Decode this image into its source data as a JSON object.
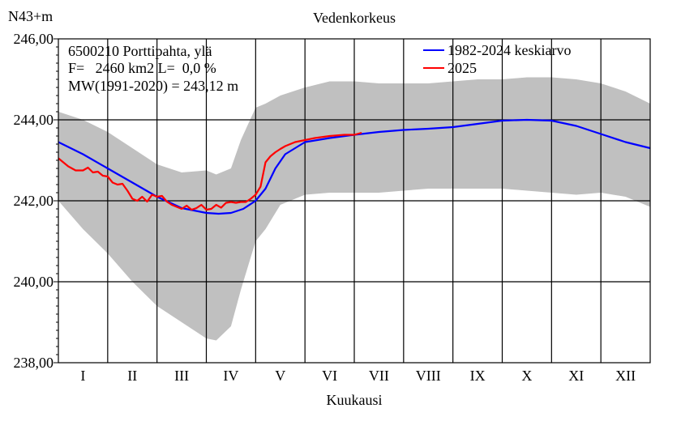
{
  "chart_data": {
    "type": "line",
    "title": "Vedenkorkeus",
    "ylabel": "N43+m",
    "xlabel": "Kuukausi",
    "ylim": [
      238,
      246
    ],
    "xlim": [
      0,
      12
    ],
    "yticks": [
      "238,00",
      "240,00",
      "242,00",
      "244,00",
      "246,00"
    ],
    "ytick_values": [
      238,
      240,
      242,
      244,
      246
    ],
    "months": [
      "I",
      "II",
      "III",
      "IV",
      "V",
      "VI",
      "VII",
      "VIII",
      "IX",
      "X",
      "XI",
      "XII"
    ],
    "info_lines": [
      "6500210 Porttipahta, ylä",
      "F=   2460 km2 L=  0,0 %",
      "MW(1991-2020) = 243,12 m"
    ],
    "grid": true,
    "legend_position": "top-right",
    "band": {
      "color": "#c0c0c0",
      "x": [
        0,
        0.5,
        1.0,
        1.5,
        2.0,
        2.5,
        3.0,
        3.2,
        3.5,
        3.7,
        4.0,
        4.2,
        4.5,
        5.0,
        5.5,
        6.0,
        6.5,
        7.0,
        7.5,
        8.0,
        8.5,
        9.0,
        9.5,
        10.0,
        10.5,
        11.0,
        11.5,
        12.0
      ],
      "upper": [
        244.2,
        244.0,
        243.7,
        243.3,
        242.9,
        242.7,
        242.75,
        242.65,
        242.8,
        243.5,
        244.3,
        244.4,
        244.6,
        244.8,
        244.95,
        244.95,
        244.9,
        244.9,
        244.9,
        244.95,
        245.0,
        245.0,
        245.05,
        245.05,
        245.0,
        244.9,
        244.7,
        244.4
      ],
      "lower": [
        242.0,
        241.3,
        240.7,
        240.0,
        239.4,
        239.0,
        238.6,
        238.55,
        238.9,
        239.8,
        241.0,
        241.3,
        241.9,
        242.15,
        242.2,
        242.2,
        242.2,
        242.25,
        242.3,
        242.3,
        242.3,
        242.3,
        242.25,
        242.2,
        242.15,
        242.2,
        242.1,
        241.85
      ]
    },
    "series": [
      {
        "name": "1982-2024 keskiarvo",
        "color": "#0000ff",
        "x": [
          0,
          0.5,
          1.0,
          1.5,
          2.0,
          2.5,
          3.0,
          3.25,
          3.5,
          3.75,
          4.0,
          4.2,
          4.4,
          4.6,
          4.8,
          5.0,
          5.5,
          6.0,
          6.5,
          7.0,
          7.5,
          8.0,
          8.5,
          9.0,
          9.5,
          10.0,
          10.5,
          11.0,
          11.5,
          12.0
        ],
        "y": [
          243.45,
          243.15,
          242.8,
          242.45,
          242.1,
          241.82,
          241.7,
          241.68,
          241.7,
          241.8,
          242.0,
          242.3,
          242.8,
          243.15,
          243.3,
          243.45,
          243.55,
          243.63,
          243.7,
          243.75,
          243.78,
          243.82,
          243.9,
          243.98,
          244.0,
          243.98,
          243.85,
          243.65,
          243.45,
          243.3
        ]
      },
      {
        "name": "2025",
        "color": "#ff0000",
        "x": [
          0,
          0.2,
          0.35,
          0.5,
          0.6,
          0.7,
          0.8,
          0.9,
          1.0,
          1.1,
          1.2,
          1.3,
          1.4,
          1.5,
          1.6,
          1.7,
          1.8,
          1.9,
          2.0,
          2.1,
          2.2,
          2.3,
          2.4,
          2.5,
          2.6,
          2.7,
          2.8,
          2.9,
          3.0,
          3.1,
          3.2,
          3.3,
          3.4,
          3.5,
          3.6,
          3.7,
          3.8,
          3.9,
          4.0,
          4.1,
          4.2,
          4.3,
          4.4,
          4.5,
          4.6,
          4.8,
          5.0,
          5.2,
          5.5,
          5.8,
          6.0,
          6.15
        ],
        "y": [
          243.05,
          242.85,
          242.75,
          242.75,
          242.82,
          242.7,
          242.72,
          242.62,
          242.6,
          242.45,
          242.4,
          242.42,
          242.25,
          242.05,
          242.0,
          242.1,
          241.98,
          242.15,
          242.1,
          242.12,
          241.98,
          241.9,
          241.85,
          241.8,
          241.88,
          241.78,
          241.82,
          241.9,
          241.78,
          241.8,
          241.9,
          241.83,
          241.95,
          241.97,
          241.95,
          241.97,
          241.97,
          242.05,
          242.15,
          242.35,
          242.95,
          243.1,
          243.2,
          243.28,
          243.35,
          243.45,
          243.5,
          243.55,
          243.6,
          243.63,
          243.63,
          243.68
        ]
      }
    ]
  }
}
